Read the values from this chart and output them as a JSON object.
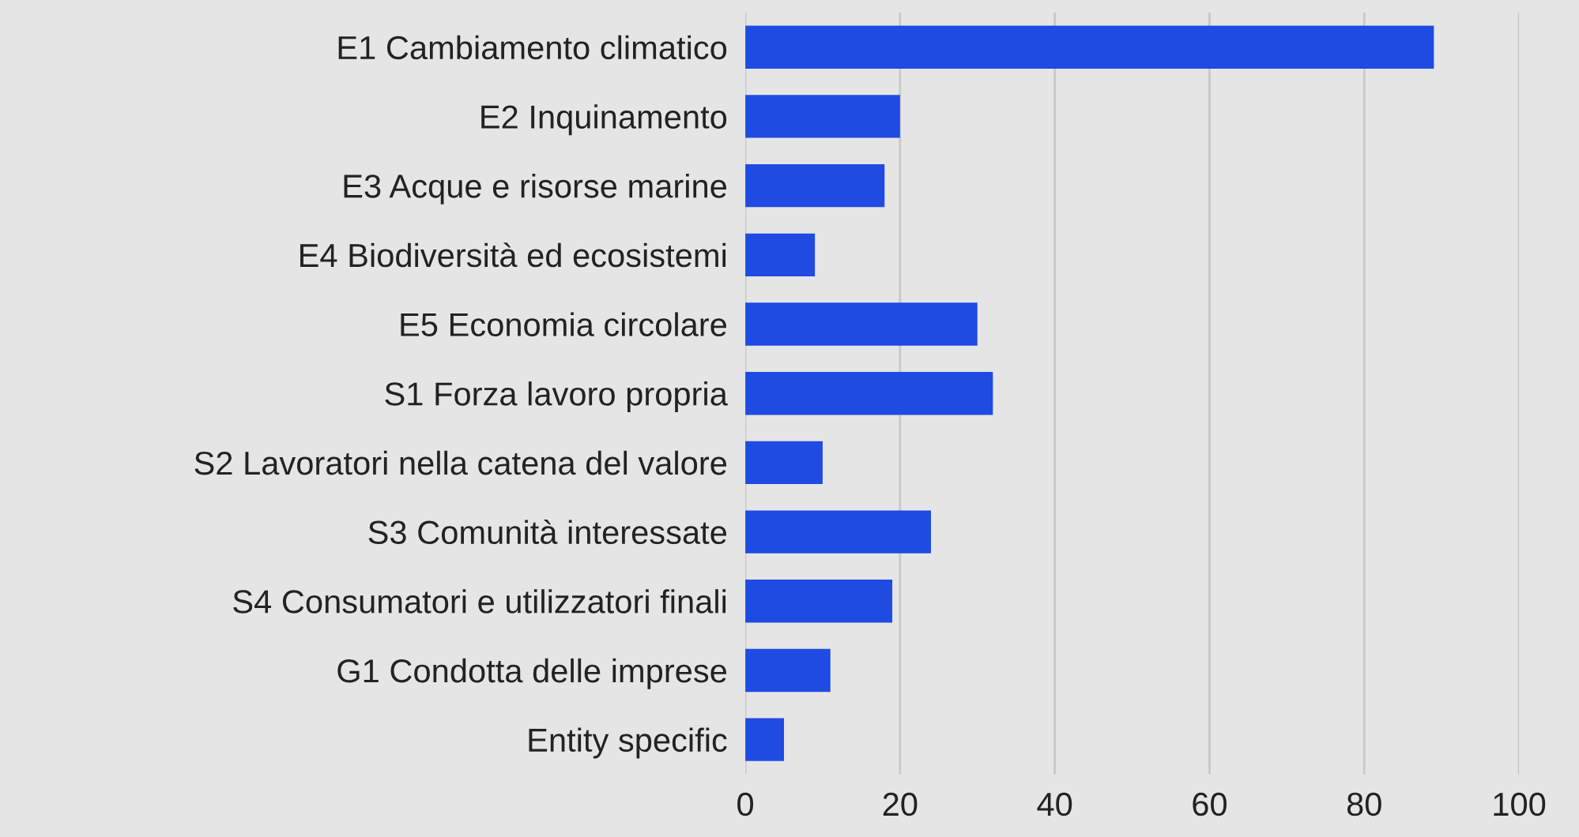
{
  "chart_data": {
    "type": "bar",
    "orientation": "horizontal",
    "categories": [
      "E1 Cambiamento climatico",
      "E2 Inquinamento",
      "E3 Acque e risorse marine",
      "E4 Biodiversità ed ecosistemi",
      "E5 Economia circolare",
      "S1 Forza lavoro propria",
      "S2 Lavoratori nella catena del valore",
      "S3 Comunità interessate",
      "S4 Consumatori e utilizzatori finali",
      "G1 Condotta delle imprese",
      "Entity specific"
    ],
    "values": [
      89,
      20,
      18,
      9,
      30,
      32,
      10,
      24,
      19,
      11,
      5
    ],
    "color": "#1f4be3",
    "xlim": [
      0,
      100
    ],
    "xticks": [
      0,
      20,
      40,
      60,
      80,
      100
    ],
    "grid": "x"
  }
}
